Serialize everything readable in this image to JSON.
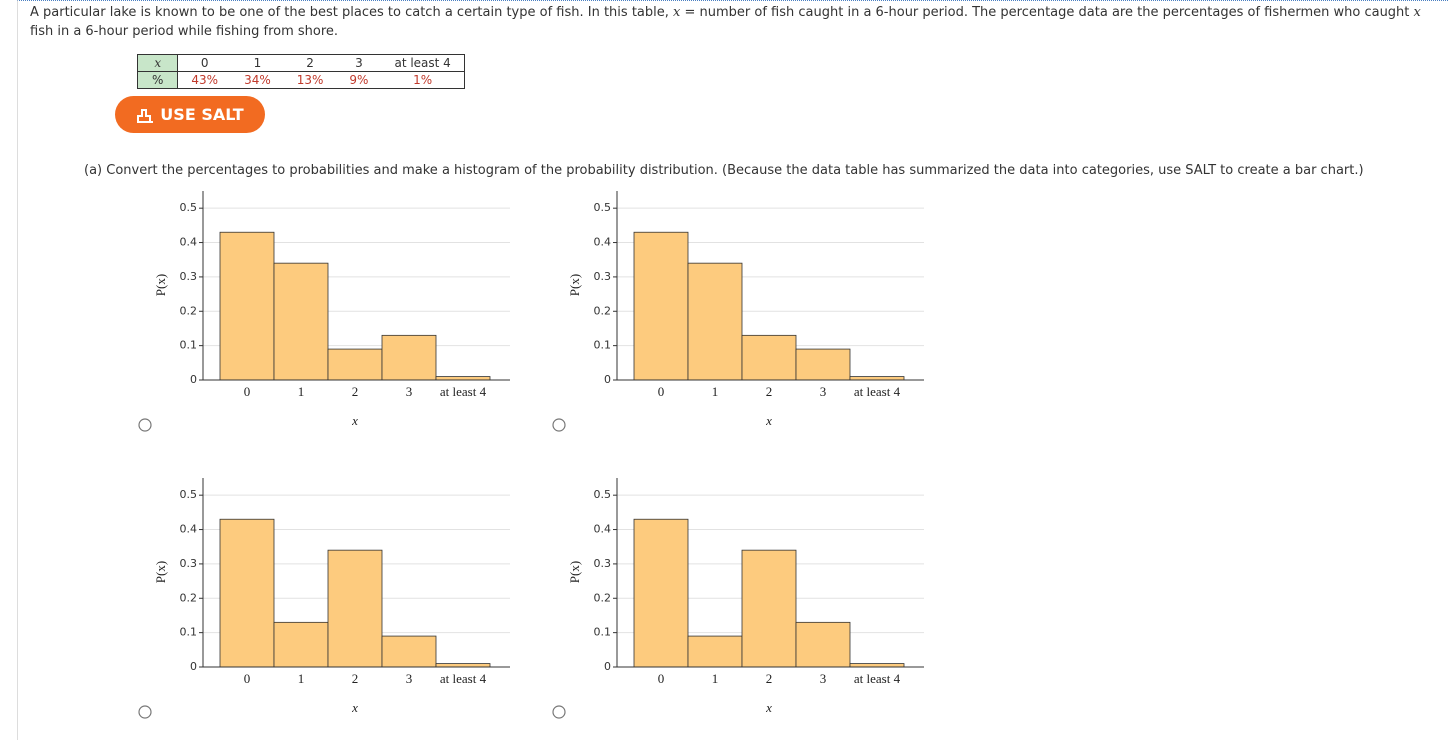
{
  "question": [
    "A particular lake is known to be one of the best places to catch a certain type of fish. In this table, ",
    "x",
    " = number of fish caught in a 6-hour period. The percentage data are the percentages of fishermen who caught ",
    "x",
    " fish in a 6-hour period while fishing from shore."
  ],
  "table": {
    "rows": [
      [
        "x",
        "0",
        "1",
        "2",
        "3",
        "at least 4"
      ],
      [
        "%",
        "43%",
        "34%",
        "13%",
        "9%",
        "1%"
      ]
    ]
  },
  "button": "USE SALT",
  "part_a": "(a) Convert the percentages to probabilities and make a histogram of the probability distribution. (Because the data table has summarized the data into categories, use SALT to create a bar chart.)",
  "chart_data": [
    {
      "type": "bar",
      "xlabel": "x",
      "ylabel": "P(x)",
      "categories": [
        "0",
        "1",
        "2",
        "3",
        "at least 4"
      ],
      "values": [
        0.43,
        0.34,
        0.09,
        0.13,
        0.01
      ],
      "color": "#fdcb7e",
      "ylim": [
        0,
        0.55
      ],
      "yticks": [
        0,
        0.1,
        0.2,
        0.3,
        0.4,
        0.5
      ],
      "grid": true
    },
    {
      "type": "bar",
      "xlabel": "x",
      "ylabel": "P(x)",
      "categories": [
        "0",
        "1",
        "2",
        "3",
        "at least 4"
      ],
      "values": [
        0.43,
        0.34,
        0.13,
        0.09,
        0.01
      ],
      "color": "#fdcb7e",
      "ylim": [
        0,
        0.55
      ],
      "yticks": [
        0,
        0.1,
        0.2,
        0.3,
        0.4,
        0.5
      ],
      "grid": true
    },
    {
      "type": "bar",
      "xlabel": "x",
      "ylabel": "P(x)",
      "categories": [
        "0",
        "1",
        "2",
        "3",
        "at least 4"
      ],
      "values": [
        0.43,
        0.13,
        0.34,
        0.09,
        0.01
      ],
      "color": "#fdcb7e",
      "ylim": [
        0,
        0.55
      ],
      "yticks": [
        0,
        0.1,
        0.2,
        0.3,
        0.4,
        0.5
      ],
      "grid": true
    },
    {
      "type": "bar",
      "xlabel": "x",
      "ylabel": "P(x)",
      "categories": [
        "0",
        "1",
        "2",
        "3",
        "at least 4"
      ],
      "values": [
        0.43,
        0.09,
        0.34,
        0.13,
        0.01
      ],
      "color": "#fdcb7e",
      "ylim": [
        0,
        0.55
      ],
      "yticks": [
        0,
        0.1,
        0.2,
        0.3,
        0.4,
        0.5
      ],
      "grid": true
    }
  ]
}
